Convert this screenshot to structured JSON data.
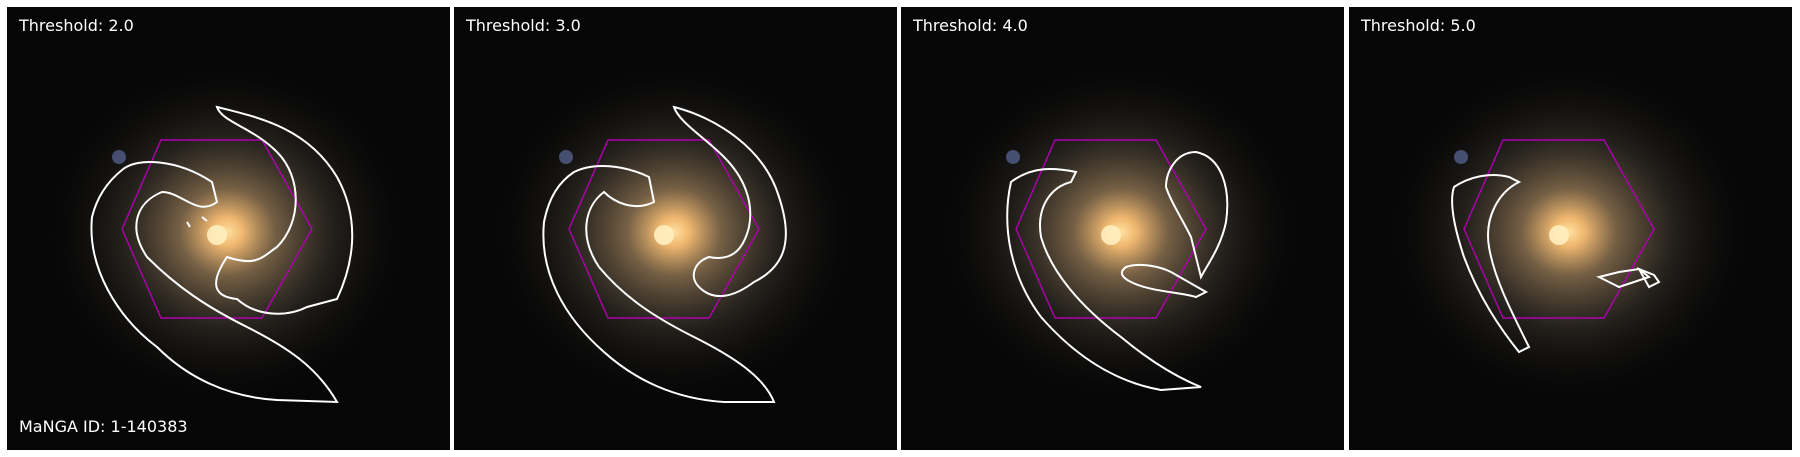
{
  "figure": {
    "manga_id": "MaNGA ID: 1-140383",
    "panels": [
      {
        "label": "Threshold: 2.0"
      },
      {
        "label": "Threshold: 3.0"
      },
      {
        "label": "Threshold: 4.0"
      },
      {
        "label": "Threshold: 5.0"
      }
    ],
    "colors": {
      "background": "#050505",
      "contour": "#ffffff",
      "hexagon": "#b000b0",
      "galaxy_core": "#ffd08a"
    }
  }
}
